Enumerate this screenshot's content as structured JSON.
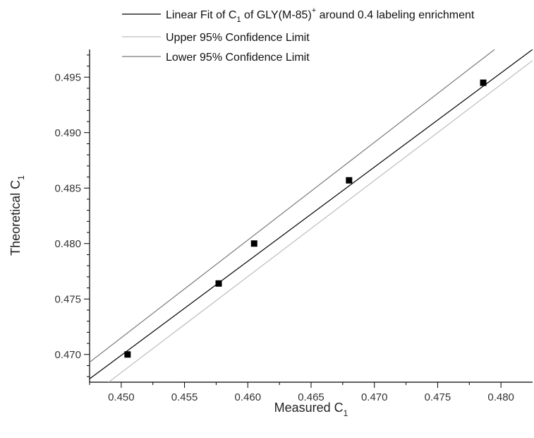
{
  "chart_data": {
    "type": "scatter",
    "title": "",
    "xlabel": {
      "main": "Measured C",
      "sub": "1"
    },
    "ylabel": {
      "main": "Theoretical  C",
      "sub": "1"
    },
    "xlim": [
      0.4475,
      0.4825
    ],
    "ylim": [
      0.4675,
      0.4975
    ],
    "x_ticks": [
      "0.450",
      "0.455",
      "0.460",
      "0.465",
      "0.470",
      "0.475",
      "0.480"
    ],
    "y_ticks": [
      "0.470",
      "0.475",
      "0.480",
      "0.485",
      "0.490",
      "0.495"
    ],
    "x_tick_values": [
      0.45,
      0.455,
      0.46,
      0.465,
      0.47,
      0.475,
      0.48
    ],
    "y_tick_values": [
      0.47,
      0.475,
      0.48,
      0.485,
      0.49,
      0.495
    ],
    "points": [
      {
        "x": 0.4505,
        "y": 0.47
      },
      {
        "x": 0.4577,
        "y": 0.4764
      },
      {
        "x": 0.4605,
        "y": 0.48
      },
      {
        "x": 0.468,
        "y": 0.4857
      },
      {
        "x": 0.4786,
        "y": 0.4945
      }
    ],
    "fit": {
      "name": "Linear Fit of C",
      "name_sub": "1",
      "name_mid": " of GLY(M-85)",
      "name_sup": "+",
      "name_tail": "  around 0.4 labeling enrichment",
      "color": "#000000",
      "x1": 0.4475,
      "y1": 0.4678,
      "x2": 0.4825,
      "y2": 0.4975
    },
    "upper_limit": {
      "name": "Upper 95% Confidence Limit",
      "color": "#bdbdbd",
      "x1": 0.449,
      "y1": 0.4675,
      "x2": 0.4825,
      "y2": 0.4965
    },
    "lower_limit": {
      "name": "Lower 95% Confidence Limit",
      "color": "#7a7a7a",
      "x1": 0.4475,
      "y1": 0.4693,
      "x2": 0.4795,
      "y2": 0.4975
    },
    "grid": false,
    "legend_position": "top"
  }
}
